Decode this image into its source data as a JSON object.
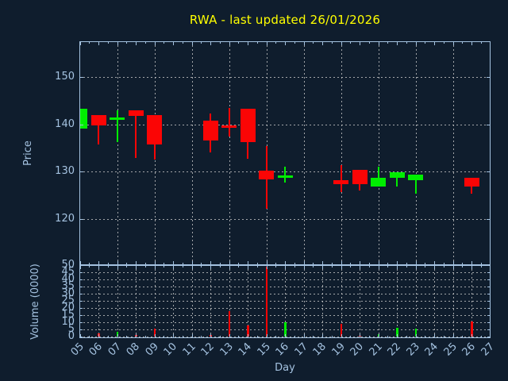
{
  "title": {
    "text": "RWA - last updated 26/01/2026"
  },
  "colors": {
    "background": "#0f1d2d",
    "axes": "#a4c2e0",
    "grid": "#c8c8c8",
    "title": "#ffff00",
    "up": "#00ee00",
    "down": "#fb0505"
  },
  "price_axis": {
    "label": "Price",
    "ticks": [
      120,
      130,
      140,
      150
    ],
    "range": [
      110.2,
      157.6
    ]
  },
  "volume_axis": {
    "label": "Volume (0000)",
    "ticks": [
      0,
      5,
      10,
      15,
      20,
      25,
      30,
      35,
      40,
      45,
      50
    ],
    "range": [
      0,
      50
    ]
  },
  "x_axis": {
    "label": "Day",
    "range": [
      5,
      27
    ],
    "day_labels": [
      "05",
      "06",
      "07",
      "08",
      "09",
      "10",
      "11",
      "12",
      "13",
      "14",
      "15",
      "16",
      "17",
      "18",
      "19",
      "20",
      "21",
      "22",
      "23",
      "24",
      "25",
      "26",
      "27"
    ]
  },
  "chart_data": {
    "type": "candlestick",
    "title": "RWA - last updated 26/01/2026",
    "xlabel": "Day",
    "ylabel_price": "Price",
    "ylabel_volume": "Volume (0000)",
    "price_ylim": [
      110.2,
      157.6
    ],
    "volume_ylim": [
      0,
      50
    ],
    "grid": "dotted",
    "legend": "none",
    "candles": [
      {
        "day": 5,
        "open": 139.1,
        "high": 143.3,
        "low": 139.1,
        "close": 143.3,
        "volume": 0,
        "dir": "up"
      },
      {
        "day": 6,
        "open": 141.9,
        "high": 141.9,
        "low": 135.8,
        "close": 139.7,
        "volume": 2.5,
        "dir": "down"
      },
      {
        "day": 7,
        "open": 141.2,
        "high": 142.9,
        "low": 136.2,
        "close": 141.2,
        "volume": 3.5,
        "dir": "up"
      },
      {
        "day": 8,
        "open": 142.9,
        "high": 142.9,
        "low": 132.9,
        "close": 141.8,
        "volume": 1.0,
        "dir": "down"
      },
      {
        "day": 9,
        "open": 141.9,
        "high": 141.9,
        "low": 132.6,
        "close": 135.8,
        "volume": 5.5,
        "dir": "down"
      },
      {
        "day": 12,
        "open": 140.8,
        "high": 142.3,
        "low": 134.1,
        "close": 136.6,
        "volume": 1.2,
        "dir": "down"
      },
      {
        "day": 13,
        "open": 139.5,
        "high": 143.4,
        "low": 137.4,
        "close": 139.5,
        "volume": 18.0,
        "dir": "down"
      },
      {
        "day": 14,
        "open": 143.3,
        "high": 143.3,
        "low": 132.7,
        "close": 136.2,
        "volume": 8.0,
        "dir": "down"
      },
      {
        "day": 15,
        "open": 130.2,
        "high": 135.4,
        "low": 122.1,
        "close": 128.4,
        "volume": 49.0,
        "dir": "down"
      },
      {
        "day": 16,
        "open": 128.9,
        "high": 131.0,
        "low": 127.7,
        "close": 128.9,
        "volume": 10.0,
        "dir": "up"
      },
      {
        "day": 19,
        "open": 128.2,
        "high": 131.3,
        "low": 125.7,
        "close": 127.4,
        "volume": 9.0,
        "dir": "down"
      },
      {
        "day": 20,
        "open": 130.4,
        "high": 130.4,
        "low": 126.0,
        "close": 127.4,
        "volume": 0.7,
        "dir": "down"
      },
      {
        "day": 21,
        "open": 126.9,
        "high": 131.0,
        "low": 126.9,
        "close": 128.6,
        "volume": 1.5,
        "dir": "up"
      },
      {
        "day": 22,
        "open": 128.6,
        "high": 129.9,
        "low": 126.9,
        "close": 129.9,
        "volume": 6.0,
        "dir": "up"
      },
      {
        "day": 23,
        "open": 128.2,
        "high": 129.4,
        "low": 125.3,
        "close": 129.4,
        "volume": 5.5,
        "dir": "up"
      },
      {
        "day": 26,
        "open": 128.6,
        "high": 128.6,
        "low": 125.3,
        "close": 126.8,
        "volume": 10.5,
        "dir": "down"
      }
    ]
  }
}
